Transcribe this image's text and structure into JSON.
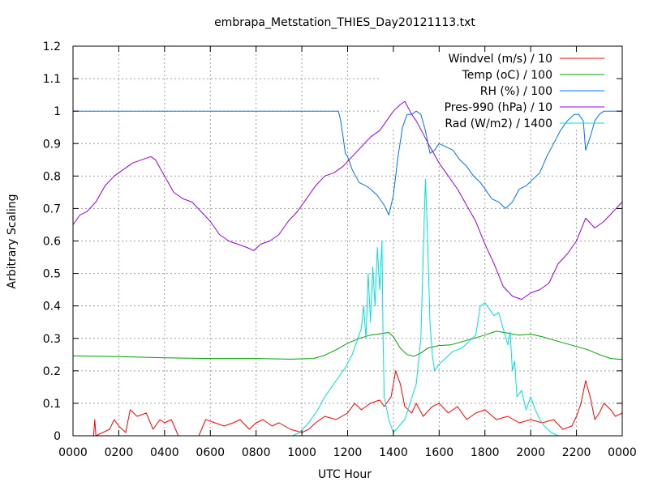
{
  "chart_data": {
    "type": "line",
    "title": "embrapa_Metstation_THIES_Day20121113.txt",
    "xlabel": "UTC Hour",
    "ylabel": "Arbitrary Scaling",
    "xlim": [
      0,
      24
    ],
    "ylim": [
      0,
      1.2
    ],
    "grid": true,
    "legend_position": "top-right",
    "x_ticks": [
      0,
      2,
      4,
      6,
      8,
      10,
      12,
      14,
      16,
      18,
      20,
      22,
      24
    ],
    "x_tick_labels": [
      "0000",
      "0200",
      "0400",
      "0600",
      "0800",
      "1000",
      "1200",
      "1400",
      "1600",
      "1800",
      "2000",
      "2200",
      "0000"
    ],
    "y_ticks": [
      0,
      0.1,
      0.2,
      0.3,
      0.4,
      0.5,
      0.6,
      0.7,
      0.8,
      0.9,
      1,
      1.1,
      1.2
    ],
    "y_tick_labels": [
      "0",
      "0.1",
      "0.2",
      "0.3",
      "0.4",
      "0.5",
      "0.6",
      "0.7",
      "0.8",
      "0.9",
      "1",
      "1.1",
      "1.2"
    ],
    "series": [
      {
        "name": "Windvel (m/s) / 10",
        "color": "#ff0000",
        "points": [
          [
            0,
            0
          ],
          [
            0.9,
            0
          ],
          [
            0.95,
            0.05
          ],
          [
            1.0,
            0
          ],
          [
            1.6,
            0.02
          ],
          [
            1.8,
            0.05
          ],
          [
            2.0,
            0.03
          ],
          [
            2.3,
            0.01
          ],
          [
            2.5,
            0.08
          ],
          [
            2.8,
            0.06
          ],
          [
            3.2,
            0.07
          ],
          [
            3.5,
            0.02
          ],
          [
            3.8,
            0.05
          ],
          [
            4.0,
            0.04
          ],
          [
            4.3,
            0.05
          ],
          [
            4.6,
            0
          ],
          [
            5.5,
            0
          ],
          [
            5.8,
            0.05
          ],
          [
            6.2,
            0.04
          ],
          [
            6.6,
            0.03
          ],
          [
            7.0,
            0.04
          ],
          [
            7.3,
            0.05
          ],
          [
            7.7,
            0.02
          ],
          [
            8.0,
            0.04
          ],
          [
            8.3,
            0.05
          ],
          [
            8.7,
            0.03
          ],
          [
            9.0,
            0.04
          ],
          [
            9.5,
            0.02
          ],
          [
            10.0,
            0.01
          ],
          [
            10.3,
            0.02
          ],
          [
            10.6,
            0.04
          ],
          [
            11.0,
            0.06
          ],
          [
            11.5,
            0.05
          ],
          [
            12.0,
            0.07
          ],
          [
            12.3,
            0.1
          ],
          [
            12.6,
            0.08
          ],
          [
            13.0,
            0.1
          ],
          [
            13.4,
            0.11
          ],
          [
            13.6,
            0.09
          ],
          [
            13.9,
            0.12
          ],
          [
            14.1,
            0.2
          ],
          [
            14.3,
            0.16
          ],
          [
            14.5,
            0.09
          ],
          [
            14.8,
            0.07
          ],
          [
            15.0,
            0.1
          ],
          [
            15.3,
            0.06
          ],
          [
            15.7,
            0.09
          ],
          [
            16.0,
            0.1
          ],
          [
            16.4,
            0.07
          ],
          [
            16.8,
            0.09
          ],
          [
            17.2,
            0.05
          ],
          [
            17.6,
            0.07
          ],
          [
            18.0,
            0.08
          ],
          [
            18.5,
            0.05
          ],
          [
            19.0,
            0.06
          ],
          [
            19.5,
            0.04
          ],
          [
            20.0,
            0.05
          ],
          [
            20.5,
            0.04
          ],
          [
            21.0,
            0.05
          ],
          [
            21.4,
            0.02
          ],
          [
            21.8,
            0.03
          ],
          [
            22.0,
            0.06
          ],
          [
            22.2,
            0.1
          ],
          [
            22.4,
            0.17
          ],
          [
            22.6,
            0.12
          ],
          [
            22.8,
            0.05
          ],
          [
            23.0,
            0.07
          ],
          [
            23.2,
            0.1
          ],
          [
            23.5,
            0.08
          ],
          [
            23.7,
            0.06
          ],
          [
            24.0,
            0.07
          ]
        ]
      },
      {
        "name": "Temp (oC) / 100",
        "color": "#00a000",
        "points": [
          [
            0,
            0.246
          ],
          [
            2,
            0.244
          ],
          [
            4,
            0.24
          ],
          [
            6,
            0.238
          ],
          [
            8,
            0.238
          ],
          [
            9.5,
            0.236
          ],
          [
            10.5,
            0.238
          ],
          [
            11,
            0.248
          ],
          [
            11.5,
            0.265
          ],
          [
            12,
            0.285
          ],
          [
            12.5,
            0.3
          ],
          [
            13,
            0.31
          ],
          [
            13.5,
            0.315
          ],
          [
            13.8,
            0.318
          ],
          [
            14.0,
            0.305
          ],
          [
            14.3,
            0.27
          ],
          [
            14.6,
            0.25
          ],
          [
            14.9,
            0.245
          ],
          [
            15.2,
            0.255
          ],
          [
            15.5,
            0.27
          ],
          [
            16,
            0.278
          ],
          [
            16.5,
            0.28
          ],
          [
            17,
            0.29
          ],
          [
            17.5,
            0.3
          ],
          [
            18,
            0.31
          ],
          [
            18.5,
            0.322
          ],
          [
            19,
            0.316
          ],
          [
            19.5,
            0.31
          ],
          [
            20,
            0.313
          ],
          [
            20.5,
            0.305
          ],
          [
            21,
            0.295
          ],
          [
            21.5,
            0.285
          ],
          [
            22,
            0.275
          ],
          [
            22.5,
            0.265
          ],
          [
            23,
            0.25
          ],
          [
            23.5,
            0.238
          ],
          [
            24,
            0.235
          ]
        ]
      },
      {
        "name": "RH (%) / 100",
        "color": "#0070ff",
        "points": [
          [
            0,
            1
          ],
          [
            11.6,
            1
          ],
          [
            11.7,
            0.97
          ],
          [
            11.8,
            0.92
          ],
          [
            11.9,
            0.87
          ],
          [
            12.0,
            0.86
          ],
          [
            12.2,
            0.82
          ],
          [
            12.5,
            0.78
          ],
          [
            12.8,
            0.77
          ],
          [
            13.0,
            0.76
          ],
          [
            13.3,
            0.74
          ],
          [
            13.6,
            0.71
          ],
          [
            13.8,
            0.68
          ],
          [
            14.0,
            0.74
          ],
          [
            14.2,
            0.86
          ],
          [
            14.4,
            0.95
          ],
          [
            14.6,
            0.99
          ],
          [
            14.8,
            0.99
          ],
          [
            15.0,
            1.0
          ],
          [
            15.2,
            0.99
          ],
          [
            15.4,
            0.94
          ],
          [
            15.6,
            0.87
          ],
          [
            15.8,
            0.88
          ],
          [
            16.0,
            0.9
          ],
          [
            16.3,
            0.89
          ],
          [
            16.6,
            0.88
          ],
          [
            16.9,
            0.85
          ],
          [
            17.2,
            0.83
          ],
          [
            17.5,
            0.8
          ],
          [
            17.8,
            0.78
          ],
          [
            18.0,
            0.76
          ],
          [
            18.3,
            0.73
          ],
          [
            18.6,
            0.72
          ],
          [
            18.9,
            0.7
          ],
          [
            19.2,
            0.72
          ],
          [
            19.5,
            0.76
          ],
          [
            19.8,
            0.77
          ],
          [
            20.1,
            0.79
          ],
          [
            20.4,
            0.81
          ],
          [
            20.7,
            0.86
          ],
          [
            21.0,
            0.9
          ],
          [
            21.3,
            0.94
          ],
          [
            21.6,
            0.97
          ],
          [
            21.9,
            0.99
          ],
          [
            22.1,
            0.99
          ],
          [
            22.3,
            0.97
          ],
          [
            22.4,
            0.88
          ],
          [
            22.6,
            0.92
          ],
          [
            22.8,
            0.97
          ],
          [
            23.0,
            0.99
          ],
          [
            23.2,
            1.0
          ],
          [
            24,
            1.0
          ]
        ]
      },
      {
        "name": "Pres-990 (hPa) / 10",
        "color": "#9900dd",
        "points": [
          [
            0,
            0.65
          ],
          [
            0.3,
            0.68
          ],
          [
            0.6,
            0.69
          ],
          [
            1.0,
            0.72
          ],
          [
            1.4,
            0.77
          ],
          [
            1.8,
            0.8
          ],
          [
            2.2,
            0.82
          ],
          [
            2.6,
            0.84
          ],
          [
            3.0,
            0.85
          ],
          [
            3.4,
            0.86
          ],
          [
            3.6,
            0.85
          ],
          [
            4.0,
            0.8
          ],
          [
            4.4,
            0.75
          ],
          [
            4.8,
            0.73
          ],
          [
            5.2,
            0.72
          ],
          [
            5.6,
            0.69
          ],
          [
            6.0,
            0.66
          ],
          [
            6.4,
            0.62
          ],
          [
            6.8,
            0.6
          ],
          [
            7.2,
            0.59
          ],
          [
            7.6,
            0.58
          ],
          [
            7.9,
            0.57
          ],
          [
            8.2,
            0.59
          ],
          [
            8.6,
            0.6
          ],
          [
            9.0,
            0.62
          ],
          [
            9.4,
            0.66
          ],
          [
            9.8,
            0.69
          ],
          [
            10.2,
            0.73
          ],
          [
            10.6,
            0.77
          ],
          [
            11.0,
            0.8
          ],
          [
            11.4,
            0.81
          ],
          [
            11.8,
            0.83
          ],
          [
            12.2,
            0.86
          ],
          [
            12.6,
            0.89
          ],
          [
            13.0,
            0.92
          ],
          [
            13.4,
            0.94
          ],
          [
            13.7,
            0.97
          ],
          [
            14.0,
            1.0
          ],
          [
            14.3,
            1.02
          ],
          [
            14.5,
            1.03
          ],
          [
            14.8,
            0.99
          ],
          [
            15.0,
            0.97
          ],
          [
            15.3,
            0.93
          ],
          [
            15.6,
            0.89
          ],
          [
            16.0,
            0.84
          ],
          [
            16.4,
            0.8
          ],
          [
            16.8,
            0.76
          ],
          [
            17.2,
            0.71
          ],
          [
            17.6,
            0.66
          ],
          [
            18.0,
            0.59
          ],
          [
            18.4,
            0.53
          ],
          [
            18.8,
            0.46
          ],
          [
            19.2,
            0.43
          ],
          [
            19.6,
            0.42
          ],
          [
            20.0,
            0.44
          ],
          [
            20.4,
            0.45
          ],
          [
            20.8,
            0.47
          ],
          [
            21.2,
            0.53
          ],
          [
            21.6,
            0.56
          ],
          [
            22.0,
            0.6
          ],
          [
            22.4,
            0.67
          ],
          [
            22.8,
            0.64
          ],
          [
            23.2,
            0.66
          ],
          [
            23.6,
            0.69
          ],
          [
            24.0,
            0.72
          ]
        ]
      },
      {
        "name": "Rad (W/m2) / 1400",
        "color": "#00e0e0",
        "points": [
          [
            0,
            0
          ],
          [
            9.6,
            0
          ],
          [
            9.9,
            0.01
          ],
          [
            10.3,
            0.04
          ],
          [
            10.7,
            0.08
          ],
          [
            11.0,
            0.12
          ],
          [
            11.3,
            0.15
          ],
          [
            11.6,
            0.18
          ],
          [
            11.9,
            0.21
          ],
          [
            12.2,
            0.25
          ],
          [
            12.4,
            0.29
          ],
          [
            12.6,
            0.33
          ],
          [
            12.7,
            0.4
          ],
          [
            12.8,
            0.3
          ],
          [
            12.9,
            0.5
          ],
          [
            13.0,
            0.35
          ],
          [
            13.1,
            0.52
          ],
          [
            13.2,
            0.4
          ],
          [
            13.3,
            0.58
          ],
          [
            13.4,
            0.45
          ],
          [
            13.5,
            0.6
          ],
          [
            13.55,
            0.3
          ],
          [
            13.6,
            0.12
          ],
          [
            13.8,
            0.05
          ],
          [
            14.0,
            0.01
          ],
          [
            14.5,
            0.05
          ],
          [
            15.0,
            0.16
          ],
          [
            15.2,
            0.3
          ],
          [
            15.3,
            0.55
          ],
          [
            15.4,
            0.79
          ],
          [
            15.5,
            0.6
          ],
          [
            15.6,
            0.35
          ],
          [
            15.7,
            0.25
          ],
          [
            15.8,
            0.2
          ],
          [
            16.0,
            0.22
          ],
          [
            16.3,
            0.24
          ],
          [
            16.6,
            0.26
          ],
          [
            17.0,
            0.27
          ],
          [
            17.3,
            0.29
          ],
          [
            17.6,
            0.31
          ],
          [
            17.8,
            0.4
          ],
          [
            18.0,
            0.41
          ],
          [
            18.2,
            0.39
          ],
          [
            18.4,
            0.37
          ],
          [
            18.6,
            0.38
          ],
          [
            18.8,
            0.33
          ],
          [
            19.0,
            0.28
          ],
          [
            19.1,
            0.32
          ],
          [
            19.2,
            0.2
          ],
          [
            19.3,
            0.23
          ],
          [
            19.4,
            0.12
          ],
          [
            19.6,
            0.14
          ],
          [
            19.8,
            0.08
          ],
          [
            20.0,
            0.12
          ],
          [
            20.2,
            0.08
          ],
          [
            20.4,
            0.05
          ],
          [
            20.6,
            0.03
          ],
          [
            20.9,
            0.01
          ],
          [
            21.2,
            0
          ],
          [
            24,
            0
          ]
        ]
      }
    ]
  }
}
